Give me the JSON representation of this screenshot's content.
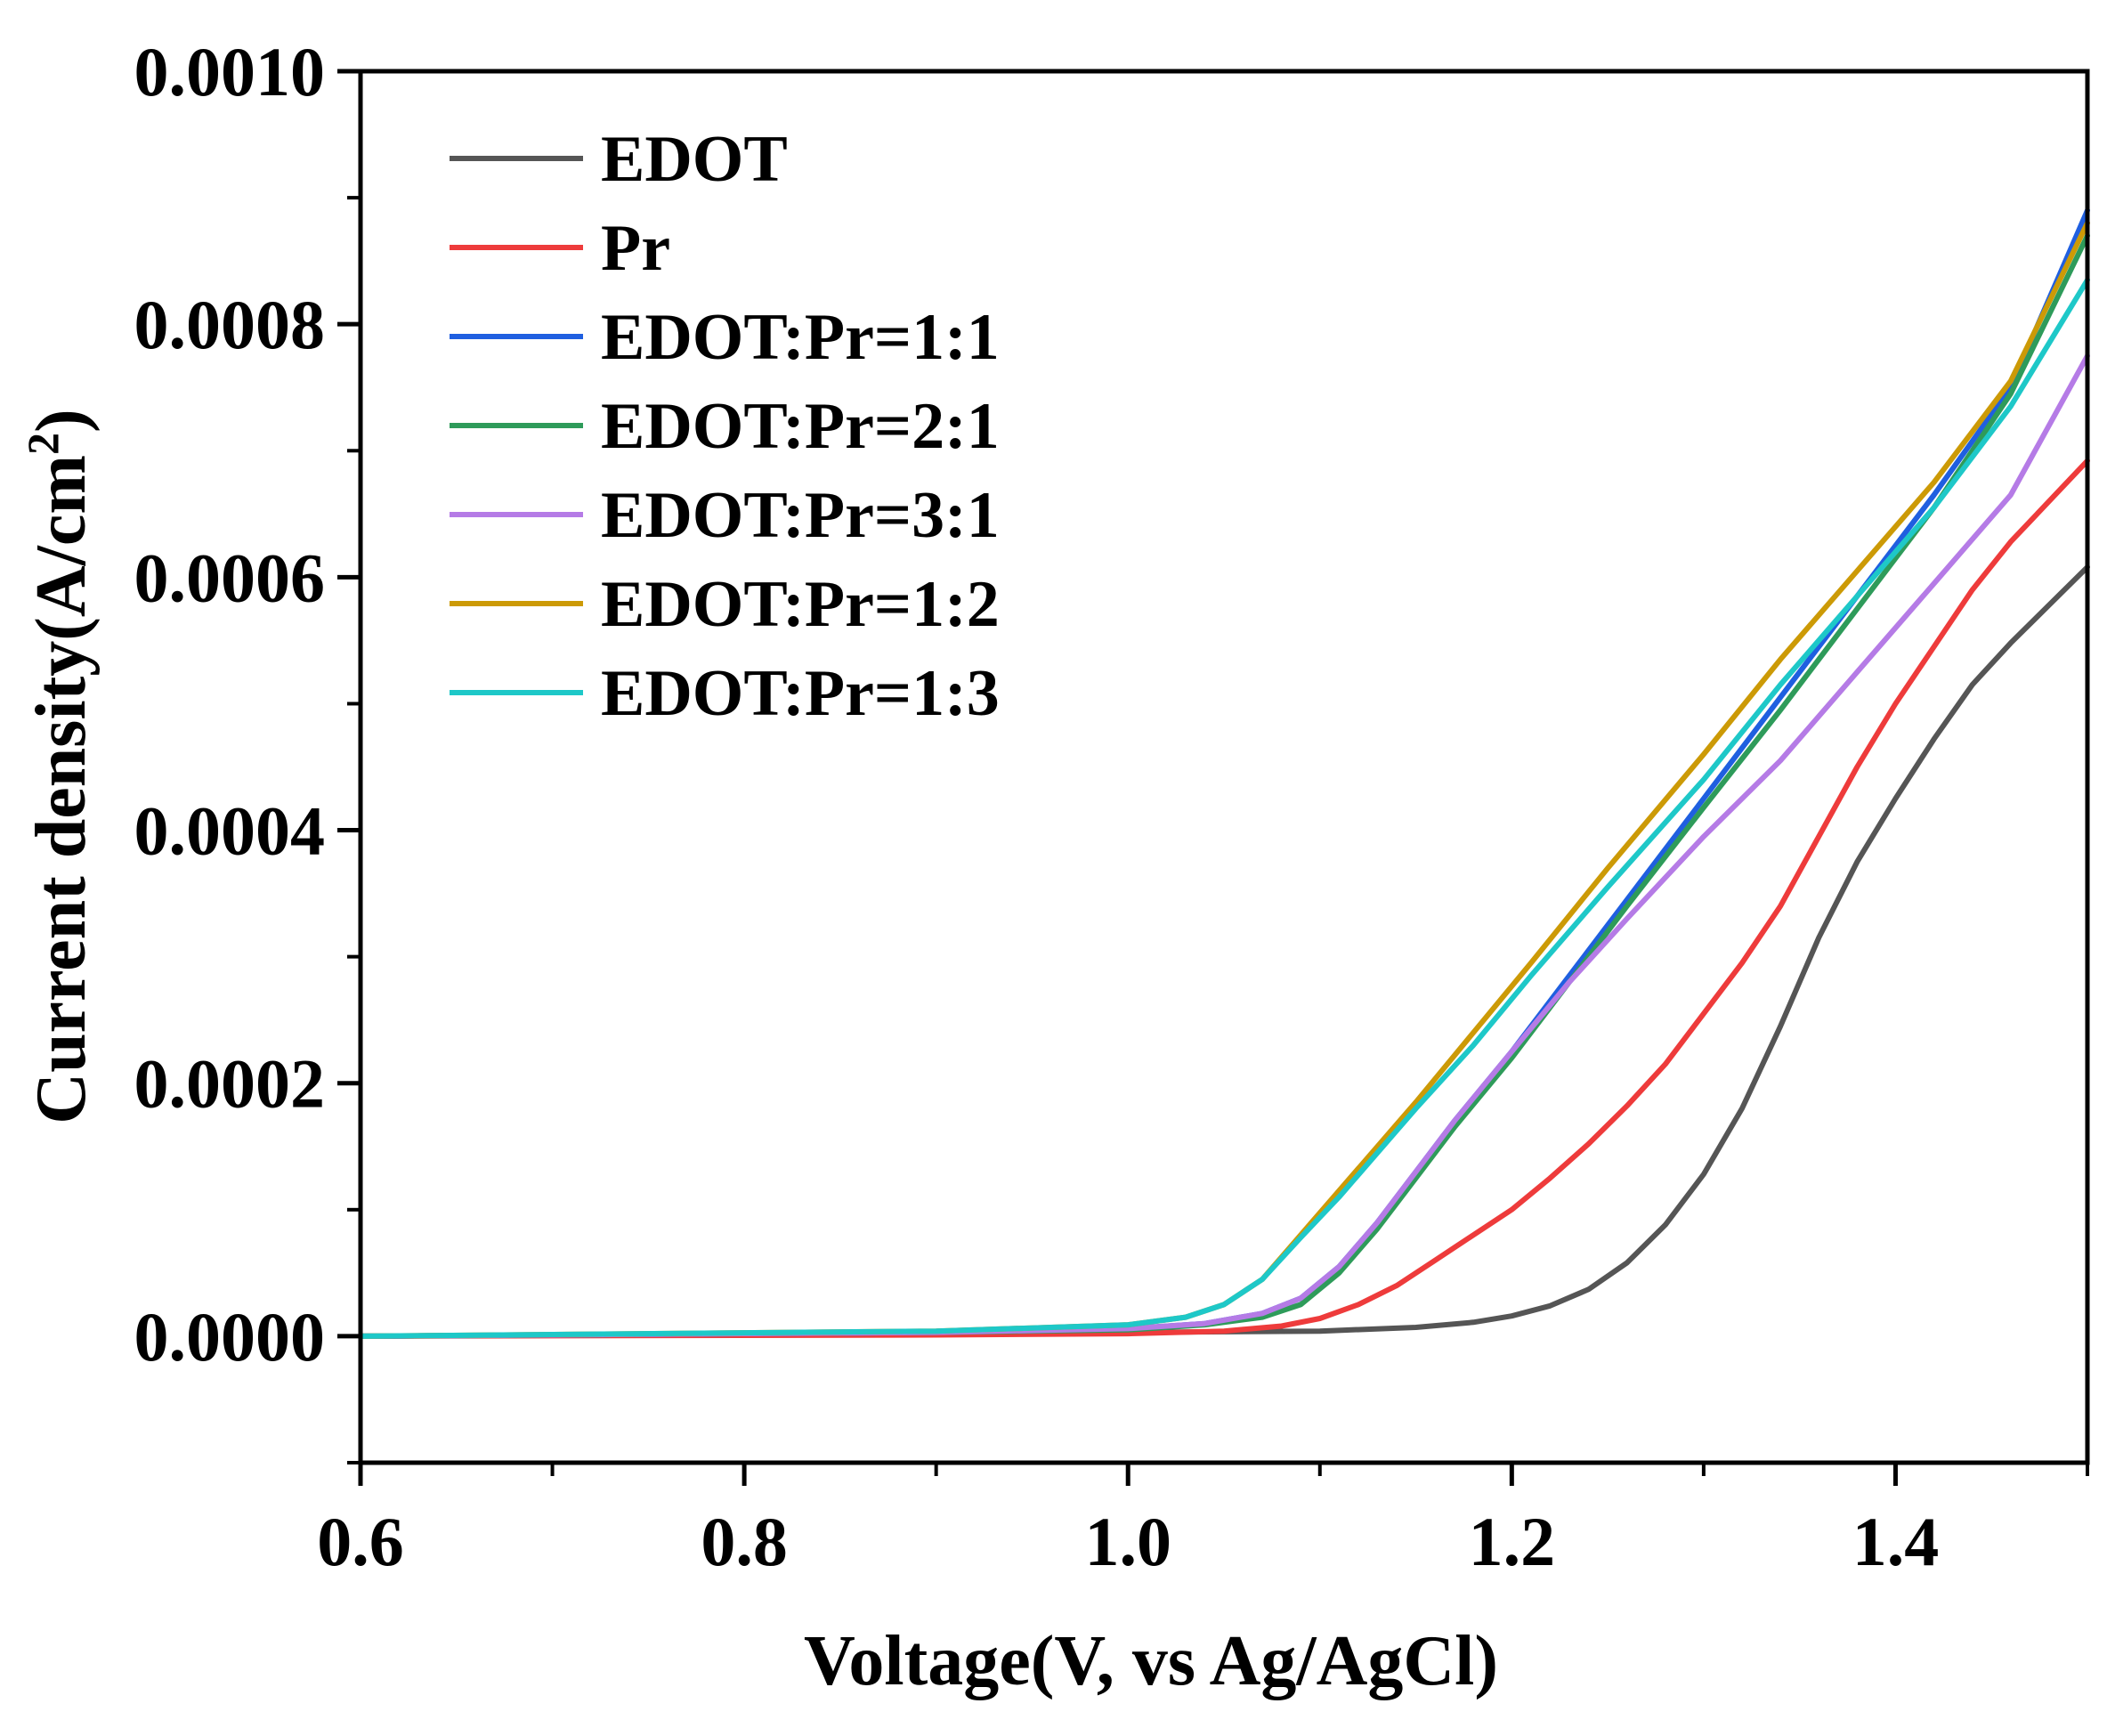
{
  "chart_data": {
    "type": "line",
    "title": "",
    "xlabel": "Voltage(V, vs Ag/AgCl)",
    "ylabel_main": "Current density(A/cm",
    "ylabel_sup": "2",
    "ylabel_close": ")",
    "xlim": [
      0.6,
      1.5
    ],
    "ylim": [
      -0.0001,
      0.001
    ],
    "xticks": [
      {
        "value": 0.6,
        "label": "0.6"
      },
      {
        "value": 0.8,
        "label": "0.8"
      },
      {
        "value": 1.0,
        "label": "1.0"
      },
      {
        "value": 1.2,
        "label": "1.2"
      },
      {
        "value": 1.4,
        "label": "1.4"
      }
    ],
    "xminor": [
      0.7,
      0.9,
      1.1,
      1.3,
      1.5
    ],
    "yticks": [
      {
        "value": 0.0,
        "label": "0.0000"
      },
      {
        "value": 0.0002,
        "label": "0.0002"
      },
      {
        "value": 0.0004,
        "label": "0.0004"
      },
      {
        "value": 0.0006,
        "label": "0.0006"
      },
      {
        "value": 0.0008,
        "label": "0.0008"
      },
      {
        "value": 0.001,
        "label": "0.0010"
      }
    ],
    "yminor": [
      -0.0001,
      0.0001,
      0.0003,
      0.0005,
      0.0007,
      0.0009
    ],
    "grid": false,
    "legend_position": "top-left",
    "series": [
      {
        "name": "EDOT",
        "color": "#555555",
        "points": [
          [
            0.6,
            0
          ],
          [
            0.9,
            2e-06
          ],
          [
            1.1,
            4e-06
          ],
          [
            1.15,
            7e-06
          ],
          [
            1.18,
            1.1e-05
          ],
          [
            1.2,
            1.6e-05
          ],
          [
            1.22,
            2.4e-05
          ],
          [
            1.24,
            3.7e-05
          ],
          [
            1.26,
            5.8e-05
          ],
          [
            1.28,
            8.8e-05
          ],
          [
            1.3,
            0.000128
          ],
          [
            1.32,
            0.00018
          ],
          [
            1.34,
            0.000245
          ],
          [
            1.36,
            0.000315
          ],
          [
            1.38,
            0.000375
          ],
          [
            1.4,
            0.000425
          ],
          [
            1.42,
            0.000472
          ],
          [
            1.44,
            0.000515
          ],
          [
            1.46,
            0.000548
          ],
          [
            1.48,
            0.000578
          ],
          [
            1.5,
            0.000608
          ]
        ]
      },
      {
        "name": "Pr",
        "color": "#ee3b3b",
        "points": [
          [
            0.6,
            0
          ],
          [
            0.9,
            1e-06
          ],
          [
            1.0,
            2e-06
          ],
          [
            1.05,
            4e-06
          ],
          [
            1.08,
            8e-06
          ],
          [
            1.1,
            1.4e-05
          ],
          [
            1.12,
            2.5e-05
          ],
          [
            1.14,
            4e-05
          ],
          [
            1.16,
            6e-05
          ],
          [
            1.18,
            8e-05
          ],
          [
            1.2,
            0.0001
          ],
          [
            1.22,
            0.000125
          ],
          [
            1.24,
            0.000152
          ],
          [
            1.26,
            0.000182
          ],
          [
            1.28,
            0.000215
          ],
          [
            1.3,
            0.000255
          ],
          [
            1.32,
            0.000295
          ],
          [
            1.34,
            0.00034
          ],
          [
            1.36,
            0.000395
          ],
          [
            1.38,
            0.00045
          ],
          [
            1.4,
            0.0005
          ],
          [
            1.42,
            0.000545
          ],
          [
            1.44,
            0.00059
          ],
          [
            1.46,
            0.000628
          ],
          [
            1.48,
            0.00066
          ],
          [
            1.5,
            0.000692
          ]
        ]
      },
      {
        "name": "EDOT:Pr=1:1",
        "color": "#1f5fe0",
        "points": [
          [
            0.6,
            0
          ],
          [
            0.9,
            3e-06
          ],
          [
            1.0,
            6e-06
          ],
          [
            1.04,
            1e-05
          ],
          [
            1.07,
            1.8e-05
          ],
          [
            1.09,
            3e-05
          ],
          [
            1.11,
            5.5e-05
          ],
          [
            1.13,
            9e-05
          ],
          [
            1.15,
            0.00013
          ],
          [
            1.17,
            0.00017
          ],
          [
            1.2,
            0.000225
          ],
          [
            1.23,
            0.000285
          ],
          [
            1.26,
            0.000345
          ],
          [
            1.3,
            0.000425
          ],
          [
            1.34,
            0.000505
          ],
          [
            1.38,
            0.000585
          ],
          [
            1.42,
            0.000665
          ],
          [
            1.46,
            0.00075
          ],
          [
            1.5,
            0.00089
          ]
        ]
      },
      {
        "name": "EDOT:Pr=2:1",
        "color": "#2e9b5a",
        "points": [
          [
            0.6,
            0
          ],
          [
            0.9,
            3e-06
          ],
          [
            1.0,
            5e-06
          ],
          [
            1.04,
            9e-06
          ],
          [
            1.07,
            1.5e-05
          ],
          [
            1.09,
            2.5e-05
          ],
          [
            1.11,
            5e-05
          ],
          [
            1.13,
            8.5e-05
          ],
          [
            1.15,
            0.000125
          ],
          [
            1.17,
            0.000165
          ],
          [
            1.2,
            0.00022
          ],
          [
            1.23,
            0.00028
          ],
          [
            1.26,
            0.00034
          ],
          [
            1.3,
            0.000418
          ],
          [
            1.34,
            0.000495
          ],
          [
            1.38,
            0.000575
          ],
          [
            1.42,
            0.000655
          ],
          [
            1.46,
            0.000745
          ],
          [
            1.5,
            0.00087
          ]
        ]
      },
      {
        "name": "EDOT:Pr=3:1",
        "color": "#b57be6",
        "points": [
          [
            0.6,
            0
          ],
          [
            0.9,
            3e-06
          ],
          [
            1.0,
            6e-06
          ],
          [
            1.04,
            1e-05
          ],
          [
            1.07,
            1.8e-05
          ],
          [
            1.09,
            3e-05
          ],
          [
            1.11,
            5.5e-05
          ],
          [
            1.13,
            9e-05
          ],
          [
            1.15,
            0.00013
          ],
          [
            1.17,
            0.00017
          ],
          [
            1.2,
            0.000225
          ],
          [
            1.23,
            0.00028
          ],
          [
            1.26,
            0.00033
          ],
          [
            1.3,
            0.000395
          ],
          [
            1.34,
            0.000455
          ],
          [
            1.38,
            0.000525
          ],
          [
            1.42,
            0.000595
          ],
          [
            1.46,
            0.000665
          ],
          [
            1.5,
            0.000775
          ]
        ]
      },
      {
        "name": "EDOT:Pr=1:2",
        "color": "#cc9a06",
        "points": [
          [
            0.6,
            0
          ],
          [
            0.9,
            4e-06
          ],
          [
            1.0,
            9e-06
          ],
          [
            1.03,
            1.5e-05
          ],
          [
            1.05,
            2.5e-05
          ],
          [
            1.07,
            4.5e-05
          ],
          [
            1.09,
            8e-05
          ],
          [
            1.11,
            0.000115
          ],
          [
            1.13,
            0.00015
          ],
          [
            1.15,
            0.000185
          ],
          [
            1.18,
            0.00024
          ],
          [
            1.21,
            0.000295
          ],
          [
            1.25,
            0.00037
          ],
          [
            1.3,
            0.00046
          ],
          [
            1.34,
            0.000535
          ],
          [
            1.38,
            0.000605
          ],
          [
            1.42,
            0.000675
          ],
          [
            1.46,
            0.000755
          ],
          [
            1.5,
            0.00088
          ]
        ]
      },
      {
        "name": "EDOT:Pr=1:3",
        "color": "#1ec8c8",
        "points": [
          [
            0.6,
            0
          ],
          [
            0.9,
            4e-06
          ],
          [
            1.0,
            9e-06
          ],
          [
            1.03,
            1.5e-05
          ],
          [
            1.05,
            2.5e-05
          ],
          [
            1.07,
            4.5e-05
          ],
          [
            1.09,
            7.8e-05
          ],
          [
            1.11,
            0.00011
          ],
          [
            1.13,
            0.000145
          ],
          [
            1.15,
            0.00018
          ],
          [
            1.18,
            0.00023
          ],
          [
            1.21,
            0.000285
          ],
          [
            1.25,
            0.000355
          ],
          [
            1.3,
            0.00044
          ],
          [
            1.34,
            0.000515
          ],
          [
            1.38,
            0.000585
          ],
          [
            1.42,
            0.000655
          ],
          [
            1.46,
            0.000735
          ],
          [
            1.5,
            0.000835
          ]
        ]
      }
    ]
  }
}
